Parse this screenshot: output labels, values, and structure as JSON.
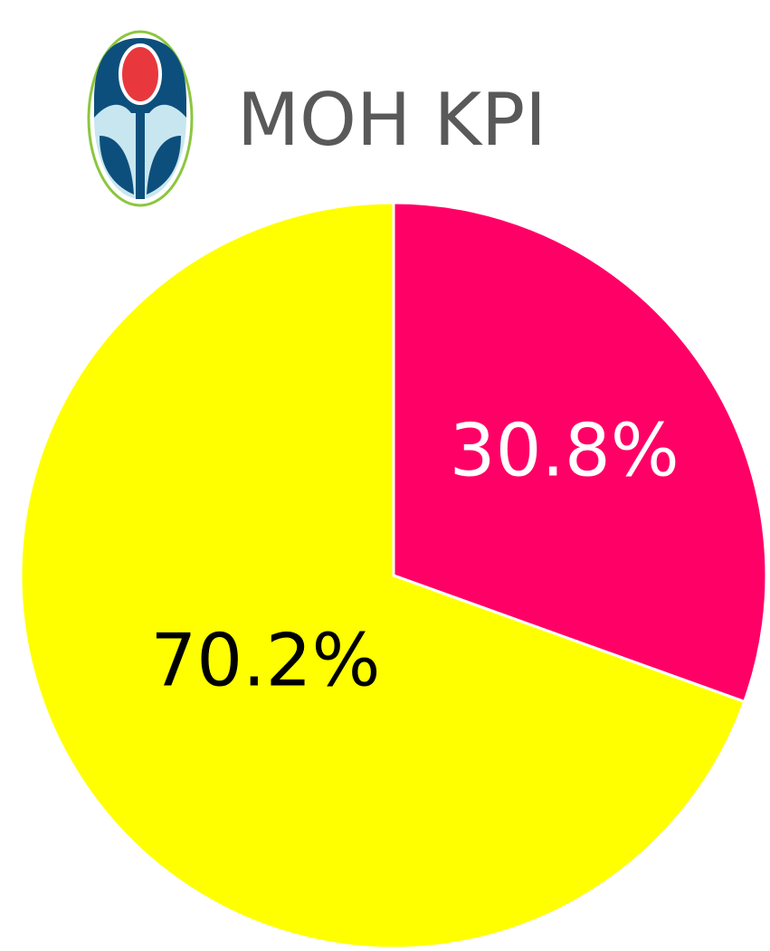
{
  "chart_data": {
    "type": "pie",
    "title": "MOH KPI",
    "values": [
      30.8,
      70.2
    ],
    "value_labels": [
      "30.8%",
      "70.2%"
    ],
    "colors": [
      "#ff0066",
      "#ffff00"
    ],
    "label_colors": [
      "#ffffff",
      "#000000"
    ]
  }
}
